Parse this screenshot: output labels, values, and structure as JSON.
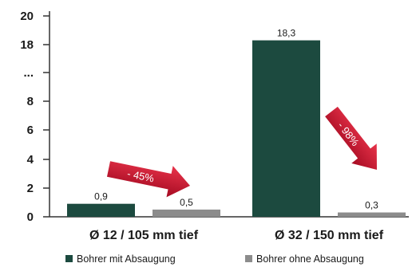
{
  "chart_data": {
    "type": "bar",
    "categories": [
      "Ø 12 / 105 mm tief",
      "Ø 32 / 150 mm tief"
    ],
    "series": [
      {
        "name": "Bohrer mit Absaugung",
        "color": "#1c4a3f",
        "values": [
          0.9,
          18.3
        ],
        "labels": [
          "0,9",
          "18,3"
        ]
      },
      {
        "name": "Bohrer ohne Absaugung",
        "color": "#8c8c8c",
        "values": [
          0.5,
          0.3
        ],
        "labels": [
          "0,5",
          "0,3"
        ]
      }
    ],
    "y_ticks": [
      {
        "label": "0",
        "kind": "value",
        "value": 0
      },
      {
        "label": "2",
        "kind": "value",
        "value": 2
      },
      {
        "label": "4",
        "kind": "value",
        "value": 4
      },
      {
        "label": "6",
        "kind": "value",
        "value": 6
      },
      {
        "label": "8",
        "kind": "value",
        "value": 8
      },
      {
        "label": "...",
        "kind": "break"
      },
      {
        "label": "18",
        "kind": "value",
        "value": 18
      },
      {
        "label": "20",
        "kind": "value",
        "value": 20
      }
    ],
    "axis_break": {
      "lower_range": [
        0,
        8
      ],
      "upper_range": [
        18,
        20
      ]
    },
    "annotations": [
      {
        "text": "- 45%",
        "category": 0,
        "color": "#c8102e"
      },
      {
        "text": "- 98%",
        "category": 1,
        "color": "#c8102e"
      }
    ],
    "legend_position": "bottom",
    "grid": false
  }
}
